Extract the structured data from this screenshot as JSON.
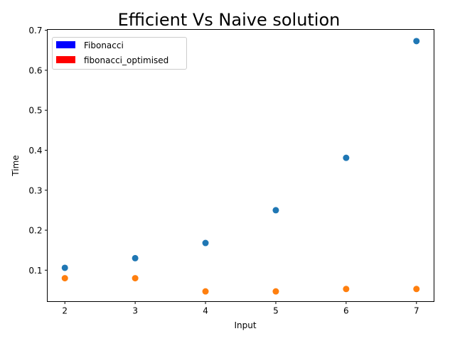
{
  "chart_data": {
    "type": "scatter",
    "title": "Efficient Vs Naive solution",
    "xlabel": "Input",
    "ylabel": "Time",
    "xlim": [
      1.75,
      7.25
    ],
    "ylim": [
      0.0215,
      0.702
    ],
    "xticks": [
      2,
      3,
      4,
      5,
      6,
      7
    ],
    "xtick_labels": [
      "2",
      "3",
      "4",
      "5",
      "6",
      "7"
    ],
    "yticks": [
      0.1,
      0.2,
      0.3,
      0.4,
      0.5,
      0.6,
      0.7
    ],
    "ytick_labels": [
      "0.1",
      "0.2",
      "0.3",
      "0.4",
      "0.5",
      "0.6",
      "0.7"
    ],
    "grid": false,
    "legend_position": "top-left",
    "legend": [
      {
        "label": "Fibonacci",
        "color": "#0000ff"
      },
      {
        "label": "fibonacci_optimised",
        "color": "#ff0000"
      }
    ],
    "series": [
      {
        "color": "#1f77b4",
        "x": [
          2,
          3,
          4,
          5,
          6,
          7
        ],
        "y": [
          0.106,
          0.13,
          0.168,
          0.25,
          0.381,
          0.673
        ]
      },
      {
        "color": "#ff7f0e",
        "x": [
          2,
          3,
          4,
          5,
          6,
          7
        ],
        "y": [
          0.08,
          0.08,
          0.047,
          0.047,
          0.053,
          0.053
        ]
      }
    ]
  }
}
